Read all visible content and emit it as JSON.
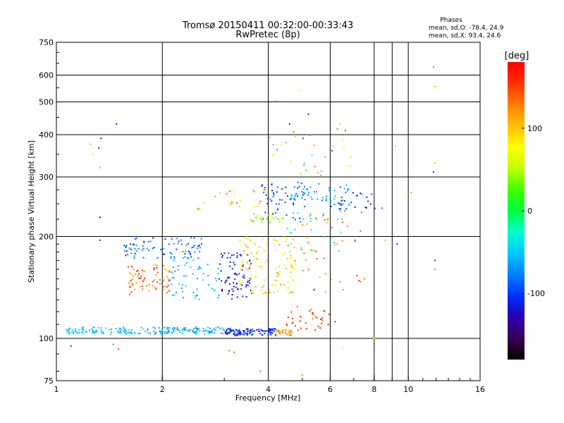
{
  "header": {
    "title_line1": "Tromsø 20150411 00:32:00-00:33:43",
    "title_line2": "RwPretec (8p)"
  },
  "phase_box": {
    "title": "Phases",
    "line_o": "mean, sd,O: -78.4, 24.9",
    "line_x": "mean, sd,X:  93.4, 24.6"
  },
  "colorbar": {
    "unit_label": "[deg]",
    "range": [
      -180,
      180
    ],
    "ticks": [
      {
        "value": 100,
        "label": "100"
      },
      {
        "value": 0,
        "label": "0"
      },
      {
        "value": -100,
        "label": "-100"
      }
    ],
    "colors": [
      "#000000",
      "#3a0052",
      "#2a00b0",
      "#0030ff",
      "#0080ff",
      "#00c8ff",
      "#00ffd0",
      "#00ff40",
      "#40ff00",
      "#c0ff00",
      "#ffff00",
      "#ffc000",
      "#ff8000",
      "#ff3000",
      "#ff0000"
    ]
  },
  "chart_data": {
    "type": "scatter",
    "title": "Tromsø 20150411 00:32:00-00:33:43",
    "subtitle": "RwPretec (8p)",
    "xlabel": "Frequency [MHz]",
    "ylabel": "Stationary phase Virtual Height [km]",
    "xscale": "log",
    "yscale": "log",
    "xlim": [
      1,
      16
    ],
    "ylim": [
      75,
      750
    ],
    "x_ticks": [
      {
        "value": 1,
        "label": "1"
      },
      {
        "value": 2,
        "label": "2"
      },
      {
        "value": 4,
        "label": "4"
      },
      {
        "value": 6,
        "label": "6"
      },
      {
        "value": 8,
        "label": "8"
      },
      {
        "value": 10,
        "label": "10"
      },
      {
        "value": 16,
        "label": "16"
      }
    ],
    "x_gridlines": [
      2,
      4,
      6,
      8,
      9,
      10
    ],
    "y_ticks": [
      {
        "value": 75,
        "label": "75"
      },
      {
        "value": 100,
        "label": "100"
      },
      {
        "value": 200,
        "label": "200"
      },
      {
        "value": 300,
        "label": "300"
      },
      {
        "value": 400,
        "label": "400"
      },
      {
        "value": 500,
        "label": "500"
      },
      {
        "value": 600,
        "label": "600"
      },
      {
        "value": 750,
        "label": "750"
      }
    ],
    "y_gridlines": [
      100,
      200,
      300,
      400,
      500,
      600
    ],
    "color_axis": "phase [deg]",
    "clusters": [
      {
        "x": [
          1.05,
          1.8
        ],
        "y": [
          103,
          108
        ],
        "phase": [
          -60,
          -40
        ],
        "n": 90
      },
      {
        "x": [
          1.8,
          3.0
        ],
        "y": [
          103,
          108
        ],
        "phase": [
          -70,
          -45
        ],
        "n": 110
      },
      {
        "x": [
          3.0,
          4.2
        ],
        "y": [
          102,
          107
        ],
        "phase": [
          -115,
          -95
        ],
        "n": 110
      },
      {
        "x": [
          4.2,
          4.7
        ],
        "y": [
          102,
          106
        ],
        "phase": [
          110,
          130
        ],
        "n": 30
      },
      {
        "x": [
          4.5,
          6.3
        ],
        "y": [
          105,
          125
        ],
        "phase": [
          130,
          170
        ],
        "n": 35
      },
      {
        "x": [
          1.55,
          2.6
        ],
        "y": [
          172,
          200
        ],
        "phase": [
          -110,
          -60
        ],
        "n": 80
      },
      {
        "x": [
          1.6,
          2.1
        ],
        "y": [
          135,
          165
        ],
        "phase": [
          100,
          170
        ],
        "n": 70
      },
      {
        "x": [
          2.1,
          2.9
        ],
        "y": [
          130,
          175
        ],
        "phase": [
          -70,
          -40
        ],
        "n": 60
      },
      {
        "x": [
          2.9,
          3.6
        ],
        "y": [
          130,
          180
        ],
        "phase": [
          -130,
          -95
        ],
        "n": 80
      },
      {
        "x": [
          3.3,
          4.8
        ],
        "y": [
          135,
          200
        ],
        "phase": [
          60,
          120
        ],
        "n": 120
      },
      {
        "x": [
          3.5,
          4.5
        ],
        "y": [
          220,
          235
        ],
        "phase": [
          30,
          60
        ],
        "n": 30
      },
      {
        "x": [
          3.8,
          5.1
        ],
        "y": [
          220,
          290
        ],
        "phase": [
          -110,
          -80
        ],
        "n": 50
      },
      {
        "x": [
          4.6,
          6.8
        ],
        "y": [
          255,
          290
        ],
        "phase": [
          -90,
          -40
        ],
        "n": 45
      },
      {
        "x": [
          5.0,
          7.5
        ],
        "y": [
          135,
          240
        ],
        "phase": [
          100,
          160
        ],
        "n": 40
      },
      {
        "x": [
          6.0,
          8.5
        ],
        "y": [
          240,
          270
        ],
        "phase": [
          -120,
          -60
        ],
        "n": 30
      },
      {
        "x": [
          2.5,
          4.5
        ],
        "y": [
          240,
          280
        ],
        "phase": [
          60,
          150
        ],
        "n": 30
      },
      {
        "x": [
          4.0,
          7.0
        ],
        "y": [
          300,
          420
        ],
        "phase": [
          -100,
          140
        ],
        "n": 30
      },
      {
        "x": [
          4.5,
          6.5
        ],
        "y": [
          180,
          240
        ],
        "phase": [
          -60,
          30
        ],
        "n": 25
      }
    ],
    "outliers": [
      {
        "x": 1.1,
        "y": 95,
        "phase": -110
      },
      {
        "x": 1.25,
        "y": 375,
        "phase": 110
      },
      {
        "x": 1.27,
        "y": 350,
        "phase": 60
      },
      {
        "x": 1.32,
        "y": 365,
        "phase": -110
      },
      {
        "x": 1.33,
        "y": 320,
        "phase": 30
      },
      {
        "x": 1.34,
        "y": 390,
        "phase": -120
      },
      {
        "x": 1.33,
        "y": 228,
        "phase": -120
      },
      {
        "x": 1.33,
        "y": 195,
        "phase": -100
      },
      {
        "x": 1.48,
        "y": 430,
        "phase": -100
      },
      {
        "x": 1.45,
        "y": 96,
        "phase": -60
      },
      {
        "x": 1.5,
        "y": 93,
        "phase": 150
      },
      {
        "x": 3.1,
        "y": 92,
        "phase": 140
      },
      {
        "x": 3.2,
        "y": 91,
        "phase": 140
      },
      {
        "x": 3.8,
        "y": 80,
        "phase": -60
      },
      {
        "x": 5.0,
        "y": 78,
        "phase": 120
      },
      {
        "x": 4.9,
        "y": 540,
        "phase": 80
      },
      {
        "x": 4.2,
        "y": 505,
        "phase": 100
      },
      {
        "x": 6.4,
        "y": 430,
        "phase": 100
      },
      {
        "x": 5.2,
        "y": 460,
        "phase": -100
      },
      {
        "x": 4.6,
        "y": 430,
        "phase": -100
      },
      {
        "x": 9.2,
        "y": 370,
        "phase": 100
      },
      {
        "x": 11.8,
        "y": 635,
        "phase": -60
      },
      {
        "x": 11.9,
        "y": 555,
        "phase": 110
      },
      {
        "x": 11.9,
        "y": 330,
        "phase": 100
      },
      {
        "x": 11.8,
        "y": 310,
        "phase": -100
      },
      {
        "x": 11.9,
        "y": 170,
        "phase": -100
      },
      {
        "x": 11.9,
        "y": 160,
        "phase": 140
      },
      {
        "x": 9.3,
        "y": 190,
        "phase": -110
      },
      {
        "x": 8.6,
        "y": 195,
        "phase": 110
      },
      {
        "x": 6.5,
        "y": 94,
        "phase": 60
      },
      {
        "x": 8.0,
        "y": 100,
        "phase": 80
      },
      {
        "x": 7.5,
        "y": 150,
        "phase": 130
      },
      {
        "x": 10.2,
        "y": 270,
        "phase": 120
      }
    ]
  }
}
